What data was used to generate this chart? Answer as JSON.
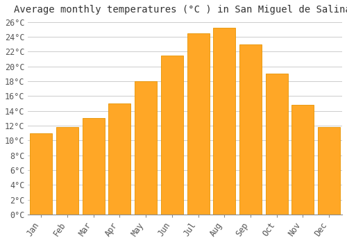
{
  "title": "Average monthly temperatures (°C ) in San Miguel de Salinas",
  "months": [
    "Jan",
    "Feb",
    "Mar",
    "Apr",
    "May",
    "Jun",
    "Jul",
    "Aug",
    "Sep",
    "Oct",
    "Nov",
    "Dec"
  ],
  "values": [
    11.0,
    11.8,
    13.0,
    15.0,
    18.0,
    21.5,
    24.5,
    25.2,
    23.0,
    19.0,
    14.8,
    11.8
  ],
  "bar_color": "#FFA726",
  "bar_edge_color": "#E69300",
  "ylim": [
    0,
    26
  ],
  "ytick_step": 2,
  "background_color": "#FFFFFF",
  "plot_bg_color": "#FFFFFF",
  "grid_color": "#CCCCCC",
  "title_fontsize": 10,
  "tick_fontsize": 8.5,
  "font_family": "monospace"
}
